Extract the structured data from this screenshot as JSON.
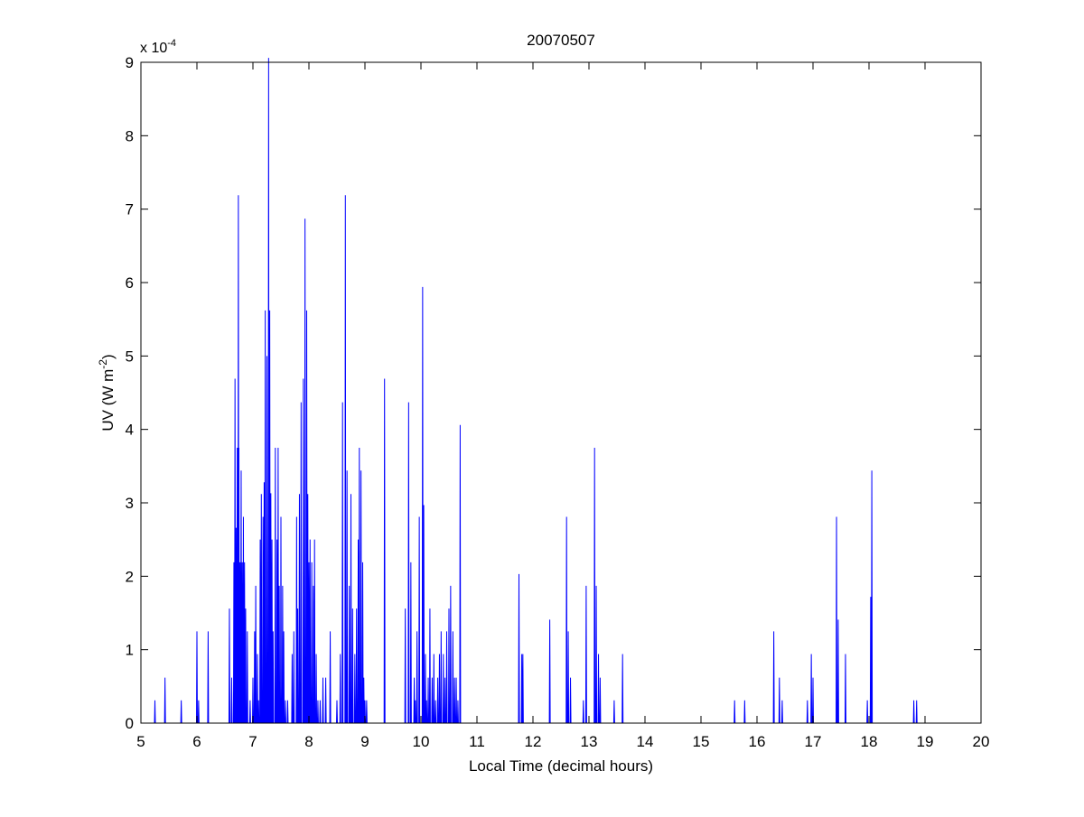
{
  "colors": {
    "background": "#ffffff",
    "axes": "#000000",
    "series": "#0000ff"
  },
  "chart_data": {
    "type": "line",
    "title": "20070507",
    "xlabel": "Local Time (decimal hours)",
    "ylabel": {
      "main": "UV (W m",
      "sup": "-2",
      "close": ")"
    },
    "y_multiplier": {
      "base": "x 10",
      "exp": "-4"
    },
    "xlim": [
      5,
      20
    ],
    "ylim": [
      0,
      9.0
    ],
    "xticks": [
      "5",
      "6",
      "7",
      "8",
      "9",
      "10",
      "11",
      "12",
      "13",
      "14",
      "15",
      "16",
      "17",
      "18",
      "19",
      "20"
    ],
    "yticks": [
      "0",
      "1",
      "2",
      "3",
      "4",
      "5",
      "6",
      "7",
      "8",
      "9"
    ],
    "y_scale_note": "values in units of 1e-4 W m^-2",
    "grid": false,
    "series": [
      {
        "x": [
          5.25,
          5.43,
          5.72,
          6.0,
          6.03,
          6.2,
          6.58,
          6.62,
          6.66,
          6.68,
          6.7,
          6.72,
          6.74,
          6.75,
          6.77,
          6.79,
          6.81,
          6.83,
          6.85,
          6.87,
          6.9,
          6.95,
          7.0,
          7.03,
          7.05,
          7.08,
          7.1,
          7.13,
          7.15,
          7.18,
          7.2,
          7.22,
          7.25,
          7.28,
          7.3,
          7.32,
          7.34,
          7.36,
          7.4,
          7.43,
          7.45,
          7.47,
          7.5,
          7.53,
          7.55,
          7.58,
          7.62,
          7.7,
          7.73,
          7.78,
          7.8,
          7.83,
          7.86,
          7.9,
          7.93,
          7.96,
          7.98,
          8.0,
          8.02,
          8.05,
          8.08,
          8.1,
          8.13,
          8.16,
          8.2,
          8.25,
          8.3,
          8.38,
          8.5,
          8.56,
          8.6,
          8.65,
          8.68,
          8.72,
          8.75,
          8.78,
          8.82,
          8.85,
          8.88,
          8.9,
          8.93,
          8.96,
          8.98,
          9.0,
          9.03,
          9.35,
          9.72,
          9.78,
          9.82,
          9.88,
          9.9,
          9.93,
          9.97,
          10.03,
          10.05,
          10.08,
          10.1,
          10.13,
          10.16,
          10.2,
          10.23,
          10.26,
          10.3,
          10.33,
          10.36,
          10.4,
          10.43,
          10.46,
          10.5,
          10.53,
          10.57,
          10.6,
          10.63,
          10.66,
          10.7,
          11.75,
          11.8,
          11.82,
          12.3,
          12.6,
          12.63,
          12.67,
          12.9,
          12.95,
          13.1,
          13.13,
          13.17,
          13.2,
          13.45,
          13.6,
          15.6,
          15.78,
          16.3,
          16.4,
          16.45,
          16.9,
          16.97,
          17.0,
          17.42,
          17.45,
          17.58,
          17.97,
          18.03,
          18.05,
          18.8,
          18.85
        ],
        "y": [
          0.31,
          0.62,
          0.31,
          1.25,
          0.31,
          1.25,
          1.56,
          0.62,
          2.19,
          4.69,
          2.66,
          3.75,
          7.19,
          3.75,
          2.19,
          3.44,
          2.19,
          2.81,
          2.19,
          1.56,
          1.25,
          0.31,
          0.62,
          1.25,
          1.87,
          0.94,
          0.31,
          2.5,
          3.12,
          2.81,
          3.28,
          5.62,
          5.0,
          9.06,
          5.62,
          3.13,
          2.5,
          1.25,
          3.75,
          2.5,
          3.75,
          1.87,
          2.81,
          1.87,
          1.25,
          0.31,
          0.31,
          0.94,
          1.25,
          2.81,
          1.56,
          3.12,
          4.37,
          4.69,
          6.87,
          5.62,
          3.12,
          2.19,
          2.5,
          2.19,
          1.87,
          2.5,
          0.94,
          0.31,
          0.31,
          0.62,
          0.62,
          1.25,
          0.31,
          0.94,
          4.37,
          7.19,
          3.44,
          1.87,
          3.12,
          1.56,
          0.94,
          1.56,
          2.5,
          3.75,
          3.44,
          2.19,
          0.62,
          0.31,
          0.31,
          4.69,
          1.56,
          4.37,
          2.19,
          0.62,
          0.31,
          1.25,
          2.81,
          5.94,
          2.97,
          0.94,
          0.31,
          0.62,
          1.56,
          0.62,
          0.94,
          0.31,
          0.62,
          0.94,
          1.25,
          0.94,
          0.62,
          1.25,
          1.56,
          1.87,
          1.25,
          0.62,
          0.62,
          0.31,
          4.06,
          2.03,
          0.94,
          0.94,
          1.41,
          2.81,
          1.25,
          0.62,
          0.31,
          1.87,
          3.75,
          1.87,
          0.94,
          0.62,
          0.31,
          0.94,
          0.31,
          0.31,
          1.25,
          0.62,
          0.31,
          0.31,
          0.94,
          0.62,
          2.81,
          1.41,
          0.94,
          0.31,
          1.72,
          3.44,
          0.31,
          0.31
        ]
      }
    ]
  }
}
